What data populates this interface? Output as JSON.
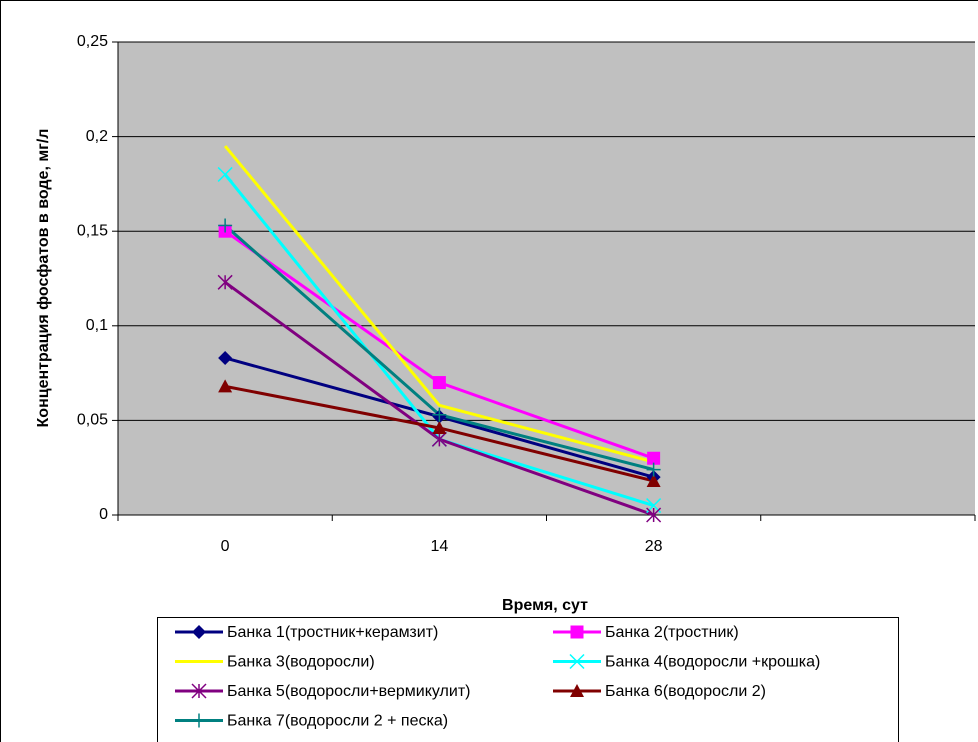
{
  "chart_data": {
    "type": "line",
    "xlabel": "Время, сут",
    "ylabel": "Концентрация фосфатов в воде, мг/л",
    "categories": [
      "0",
      "14",
      "28",
      null
    ],
    "ylim": [
      0,
      0.25
    ],
    "yticks": [
      0,
      {
        "value": 0.05,
        "label": "0,05"
      },
      {
        "value": 0.1,
        "label": "0,1"
      },
      {
        "value": 0.15,
        "label": "0,15"
      },
      {
        "value": 0.2,
        "label": "0,2"
      },
      {
        "value": 0.25,
        "label": "0,25"
      }
    ],
    "grid": true,
    "background": "#c0c0c0",
    "legend": "bottom",
    "series": [
      {
        "name": "Банка 1(тростник+керамзит)",
        "color": "#000080",
        "marker": "diamond",
        "values": [
          0.083,
          0.052,
          0.02,
          null
        ]
      },
      {
        "name": "Банка 2(тростник)",
        "color": "#ff00ff",
        "marker": "square",
        "values": [
          0.15,
          0.07,
          0.03,
          null
        ]
      },
      {
        "name": "Банка 3(водоросли)",
        "color": "#ffff00",
        "marker": "none",
        "values": [
          0.195,
          0.058,
          0.028,
          null
        ]
      },
      {
        "name": "Банка 4(водоросли +крошка)",
        "color": "#00ffff",
        "marker": "x",
        "values": [
          0.18,
          0.04,
          0.005,
          null
        ]
      },
      {
        "name": "Банка 5(водоросли+вермикулит)",
        "color": "#800080",
        "marker": "star",
        "values": [
          0.123,
          0.04,
          0,
          null
        ]
      },
      {
        "name": "Банка 6(водоросли 2)",
        "color": "#800000",
        "marker": "triangle",
        "values": [
          0.068,
          0.046,
          0.018,
          null
        ]
      },
      {
        "name": "Банка 7(водоросли 2 + песка)",
        "color": "#008080",
        "marker": "plus",
        "values": [
          0.153,
          0.053,
          0.024,
          null
        ]
      }
    ]
  }
}
